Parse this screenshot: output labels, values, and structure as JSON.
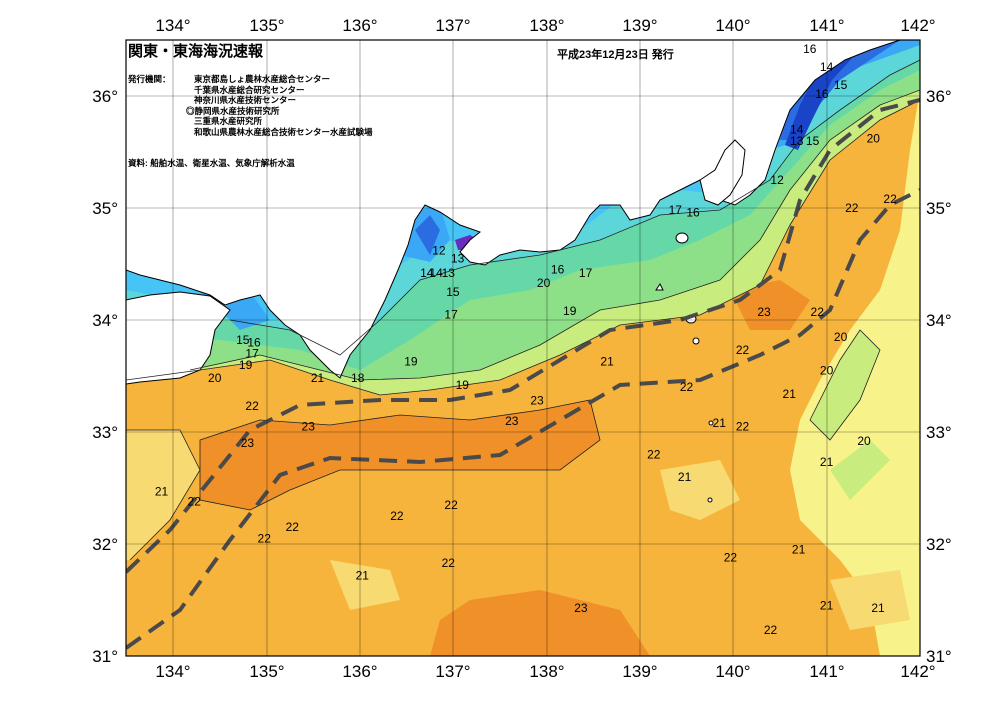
{
  "header": {
    "title": "関東・東海海況速報",
    "issued": "平成23年12月23日 発行",
    "organizations_label": "発行機関：",
    "organizations": [
      "東京都島しょ農林水産総合センター",
      "千葉県水産総合研究センター",
      "神奈川県水産技術センター",
      "◎静岡県水産技術研究所",
      "三重県水産研究所",
      "和歌山県農林水産総合技術センター水産試験場"
    ],
    "source": "資料: 船舶水温、衛星水温、気象庁解析水温"
  },
  "axes": {
    "lon_labels": [
      "134°",
      "135°",
      "136°",
      "137°",
      "138°",
      "139°",
      "140°",
      "141°",
      "142°"
    ],
    "lat_labels": [
      "36°",
      "35°",
      "34°",
      "33°",
      "32°",
      "31°"
    ],
    "lon_range": [
      133.5,
      142.0
    ],
    "lat_range": [
      31.0,
      36.5
    ]
  },
  "colors": {
    "land": "#ffffff",
    "frame": "#000000",
    "kuroshio_axis": "#4a4a4a",
    "t12": "#1a44c8",
    "t13": "#2b6de0",
    "t14": "#2f8cf0",
    "t15": "#3aa8f5",
    "t16": "#45c4f5",
    "t17": "#5cd6d8",
    "t18": "#66d8a8",
    "t19": "#8ee088",
    "t20": "#c8ec7e",
    "t21": "#f8f28a",
    "t22": "#f6b43c",
    "t23": "#f09028",
    "cold": "#6a2cc0"
  },
  "temperature_labels": [
    {
      "t": "16",
      "lon": 140.82,
      "lat": 36.42
    },
    {
      "t": "14",
      "lon": 141.0,
      "lat": 36.26
    },
    {
      "t": "15",
      "lon": 141.15,
      "lat": 36.1
    },
    {
      "t": "16",
      "lon": 140.95,
      "lat": 36.02
    },
    {
      "t": "14",
      "lon": 140.68,
      "lat": 35.7
    },
    {
      "t": "13",
      "lon": 140.68,
      "lat": 35.6
    },
    {
      "t": "15",
      "lon": 140.85,
      "lat": 35.6
    },
    {
      "t": "20",
      "lon": 141.5,
      "lat": 35.62
    },
    {
      "t": "12",
      "lon": 140.47,
      "lat": 35.25
    },
    {
      "t": "22",
      "lon": 141.27,
      "lat": 35.0
    },
    {
      "t": "22",
      "lon": 141.68,
      "lat": 35.08
    },
    {
      "t": "17",
      "lon": 139.38,
      "lat": 34.98
    },
    {
      "t": "16",
      "lon": 139.57,
      "lat": 34.96
    },
    {
      "t": "12",
      "lon": 136.85,
      "lat": 34.62
    },
    {
      "t": "13",
      "lon": 137.05,
      "lat": 34.55
    },
    {
      "t": "14",
      "lon": 136.72,
      "lat": 34.42
    },
    {
      "t": "14",
      "lon": 136.82,
      "lat": 34.42
    },
    {
      "t": "13",
      "lon": 136.95,
      "lat": 34.42
    },
    {
      "t": "15",
      "lon": 137.0,
      "lat": 34.25
    },
    {
      "t": "17",
      "lon": 136.98,
      "lat": 34.05
    },
    {
      "t": "16",
      "lon": 138.12,
      "lat": 34.45
    },
    {
      "t": "17",
      "lon": 138.42,
      "lat": 34.42
    },
    {
      "t": "20",
      "lon": 137.97,
      "lat": 34.33
    },
    {
      "t": "19",
      "lon": 138.25,
      "lat": 34.08
    },
    {
      "t": "23",
      "lon": 140.33,
      "lat": 34.07
    },
    {
      "t": "22",
      "lon": 140.9,
      "lat": 34.07
    },
    {
      "t": "15",
      "lon": 134.75,
      "lat": 33.82
    },
    {
      "t": "16",
      "lon": 134.87,
      "lat": 33.8
    },
    {
      "t": "17",
      "lon": 134.85,
      "lat": 33.7
    },
    {
      "t": "19",
      "lon": 134.78,
      "lat": 33.6
    },
    {
      "t": "20",
      "lon": 134.45,
      "lat": 33.48
    },
    {
      "t": "21",
      "lon": 135.55,
      "lat": 33.48
    },
    {
      "t": "18",
      "lon": 135.98,
      "lat": 33.48
    },
    {
      "t": "19",
      "lon": 136.55,
      "lat": 33.63
    },
    {
      "t": "19",
      "lon": 137.1,
      "lat": 33.42
    },
    {
      "t": "21",
      "lon": 138.65,
      "lat": 33.63
    },
    {
      "t": "22",
      "lon": 140.1,
      "lat": 33.73
    },
    {
      "t": "20",
      "lon": 141.15,
      "lat": 33.85
    },
    {
      "t": "20",
      "lon": 141.0,
      "lat": 33.55
    },
    {
      "t": "22",
      "lon": 139.5,
      "lat": 33.4
    },
    {
      "t": "21",
      "lon": 140.6,
      "lat": 33.34
    },
    {
      "t": "22",
      "lon": 134.85,
      "lat": 33.23
    },
    {
      "t": "23",
      "lon": 135.45,
      "lat": 33.05
    },
    {
      "t": "23",
      "lon": 137.63,
      "lat": 33.1
    },
    {
      "t": "23",
      "lon": 137.9,
      "lat": 33.28
    },
    {
      "t": "21",
      "lon": 139.85,
      "lat": 33.08
    },
    {
      "t": "22",
      "lon": 140.1,
      "lat": 33.05
    },
    {
      "t": "20",
      "lon": 141.4,
      "lat": 32.92
    },
    {
      "t": "23",
      "lon": 134.8,
      "lat": 32.9
    },
    {
      "t": "22",
      "lon": 139.15,
      "lat": 32.8
    },
    {
      "t": "21",
      "lon": 139.48,
      "lat": 32.6
    },
    {
      "t": "21",
      "lon": 141.0,
      "lat": 32.73
    },
    {
      "t": "21",
      "lon": 133.88,
      "lat": 32.47
    },
    {
      "t": "22",
      "lon": 134.23,
      "lat": 32.38
    },
    {
      "t": "22",
      "lon": 136.4,
      "lat": 32.25
    },
    {
      "t": "22",
      "lon": 136.98,
      "lat": 32.35
    },
    {
      "t": "22",
      "lon": 135.28,
      "lat": 32.15
    },
    {
      "t": "22",
      "lon": 134.98,
      "lat": 32.05
    },
    {
      "t": "21",
      "lon": 140.7,
      "lat": 31.95
    },
    {
      "t": "22",
      "lon": 139.97,
      "lat": 31.88
    },
    {
      "t": "22",
      "lon": 136.95,
      "lat": 31.83
    },
    {
      "t": "21",
      "lon": 136.03,
      "lat": 31.72
    },
    {
      "t": "21",
      "lon": 141.0,
      "lat": 31.45
    },
    {
      "t": "21",
      "lon": 141.55,
      "lat": 31.43
    },
    {
      "t": "23",
      "lon": 138.37,
      "lat": 31.43
    },
    {
      "t": "22",
      "lon": 140.4,
      "lat": 31.23
    }
  ]
}
